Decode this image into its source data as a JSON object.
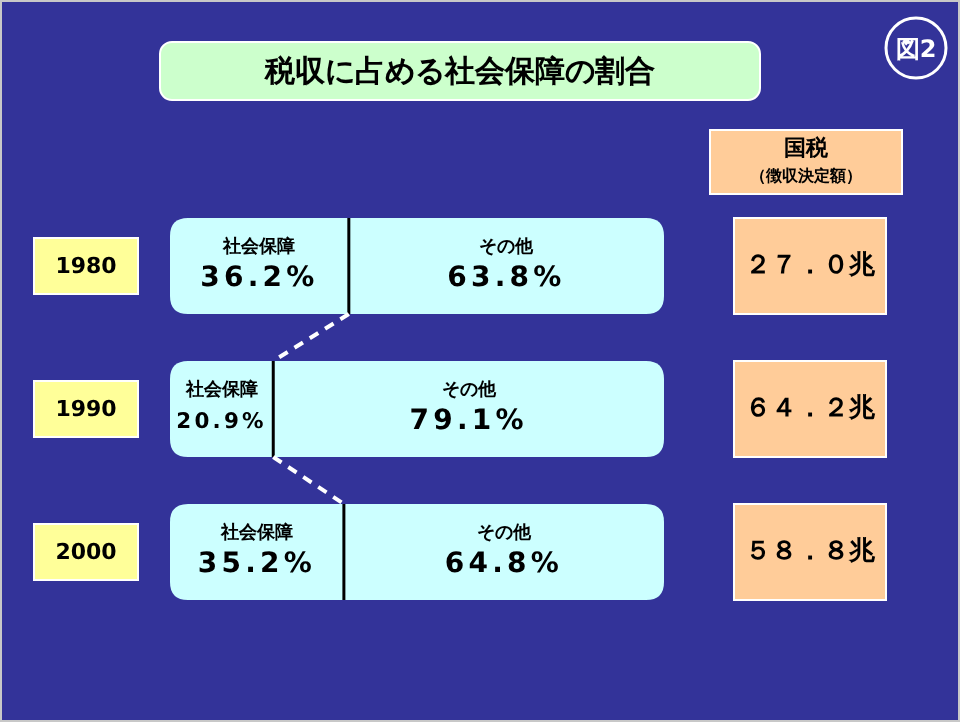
{
  "chart_data": {
    "type": "bar",
    "orientation": "horizontal",
    "stacked": true,
    "title": "税収に占める社会保障の割合",
    "categories": [
      "1980",
      "1990",
      "2000"
    ],
    "series": [
      {
        "name": "社会保障",
        "color": "#ccffff",
        "values": [
          36.2,
          20.9,
          35.2
        ],
        "value_labels": [
          "36.2%",
          "20.9%",
          "35.2%"
        ]
      },
      {
        "name": "その他",
        "color": "#ccffff",
        "values": [
          63.8,
          79.1,
          64.8
        ],
        "value_labels": [
          "63.8%",
          "79.1%",
          "64.8%"
        ]
      }
    ],
    "annotations": [
      "図2",
      "国税",
      "（徴収決定額）",
      "２７．０兆",
      "６４．２兆",
      "５８．８兆"
    ]
  }
}
